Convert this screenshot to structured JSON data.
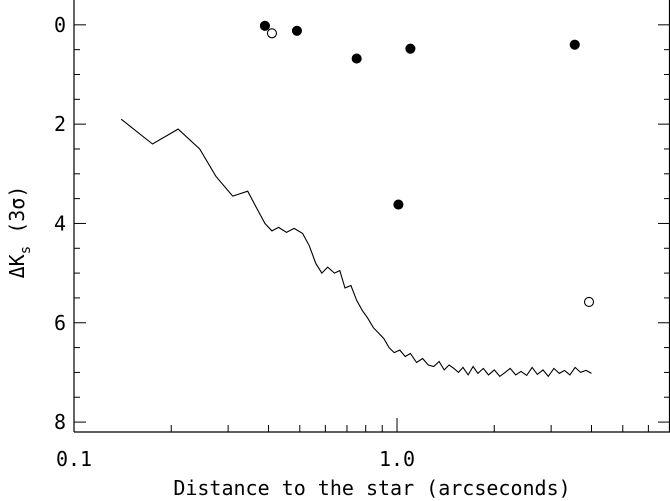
{
  "chart_data": {
    "type": "scatter",
    "xlabel": "Distance to the star (arcseconds)",
    "ylabel": "ΔK_s (3σ)",
    "xscale": "log",
    "xlim": [
      0.1,
      7.0
    ],
    "ylim": [
      8.2,
      -0.5
    ],
    "y_inverted": true,
    "x_ticks": [
      0.1,
      1.0
    ],
    "x_tick_labels": [
      "0.1",
      "1.0"
    ],
    "y_ticks": [
      0,
      2,
      4,
      6,
      8
    ],
    "y_tick_labels": [
      "0",
      "2",
      "4",
      "6",
      "8"
    ],
    "grid": false,
    "legend": "none",
    "series": [
      {
        "marker": "filled-circle",
        "x": [
          0.39,
          0.49,
          0.75,
          1.1,
          3.55,
          1.01
        ],
        "y": [
          0.02,
          0.12,
          0.68,
          0.48,
          0.4,
          3.62
        ]
      },
      {
        "marker": "open-circle",
        "x": [
          0.41,
          3.93
        ],
        "y": [
          0.17,
          5.58
        ]
      },
      {
        "marker": "line",
        "x": [
          0.14,
          0.175,
          0.21,
          0.245,
          0.275,
          0.31,
          0.345,
          0.365,
          0.39,
          0.41,
          0.43,
          0.455,
          0.48,
          0.51,
          0.535,
          0.56,
          0.585,
          0.61,
          0.64,
          0.665,
          0.69,
          0.72,
          0.75,
          0.78,
          0.81,
          0.845,
          0.875,
          0.91,
          0.945,
          0.98,
          1.02,
          1.06,
          1.1,
          1.15,
          1.2,
          1.25,
          1.3,
          1.35,
          1.4,
          1.45,
          1.5,
          1.55,
          1.6,
          1.66,
          1.72,
          1.78,
          1.85,
          1.92,
          2.0,
          2.08,
          2.16,
          2.24,
          2.33,
          2.42,
          2.52,
          2.62,
          2.72,
          2.83,
          2.94,
          3.06,
          3.18,
          3.3,
          3.43,
          3.56,
          3.7,
          3.85,
          4.0
        ],
        "y": [
          1.9,
          2.4,
          2.1,
          2.5,
          3.05,
          3.45,
          3.35,
          3.65,
          4.0,
          4.15,
          4.08,
          4.18,
          4.1,
          4.2,
          4.45,
          4.8,
          5.0,
          4.88,
          5.0,
          4.95,
          5.3,
          5.25,
          5.55,
          5.75,
          5.9,
          6.1,
          6.2,
          6.32,
          6.5,
          6.6,
          6.55,
          6.68,
          6.62,
          6.8,
          6.72,
          6.85,
          6.88,
          6.78,
          6.95,
          6.85,
          6.92,
          7.0,
          6.9,
          7.05,
          6.88,
          7.02,
          6.92,
          7.05,
          6.95,
          7.08,
          7.0,
          6.92,
          7.05,
          6.98,
          7.06,
          6.9,
          7.04,
          6.95,
          7.08,
          6.92,
          7.02,
          6.96,
          7.05,
          6.9,
          7.0,
          6.96,
          7.02
        ]
      }
    ]
  }
}
